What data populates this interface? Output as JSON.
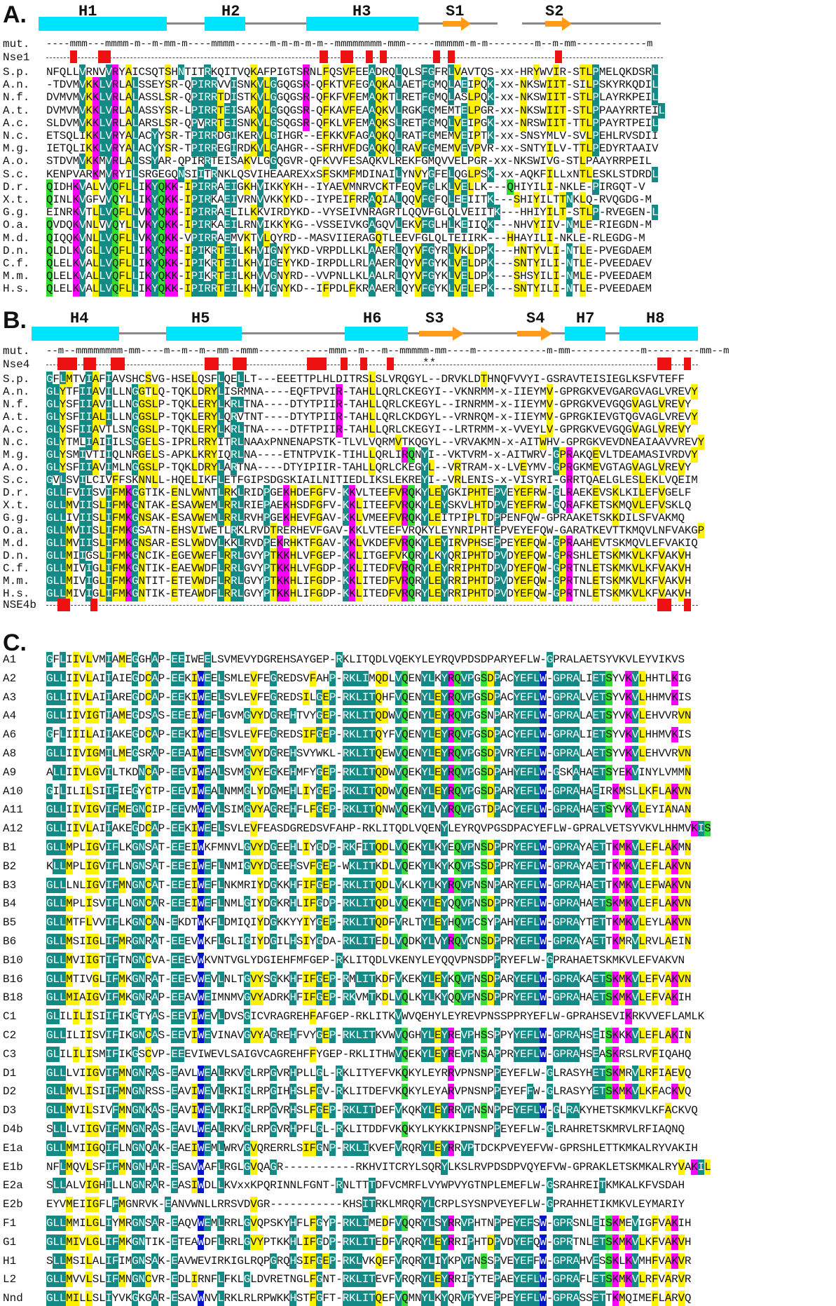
{
  "colors": {
    "conserved": "#138a85",
    "similar": "#fff200",
    "magenta": "#ff00ff",
    "blue": "#0015c8",
    "green": "#33dd33",
    "helix": "#00e5ff",
    "strand": "#ff9a1a",
    "mutation": "#ee1111"
  },
  "panelA": {
    "letter": "A.",
    "ss_labels": [
      "H1",
      "H2",
      "H3",
      "S1",
      "S2"
    ],
    "mut_label": "mut.",
    "mut_line": "----mmm---mmmm-m--m-mm-m----mmmm------m-m-m-m-m--mmmmmmmm-mmm-----mmmmm-m-m--------m--m-mm------------m",
    "nse_label": "Nse1",
    "rows": [
      {
        "label": "S.p.",
        "seq": "NFQLLVRNVVRYAICSQTSHNTITRKQITVQKAFPIGTSRNLFQSVFEEADRQLQLSFGFRLVAVTQS-xx-HRYWVIR-STLPMELQKDSRL"
      },
      {
        "label": "A.n.",
        "seq": "-TDVMVKKLVRLALSSEYSR-QPIRRVVISNKVLGGQGSR-QFKTVFEGAQKALAETFGMQLAEIPQK-xx-NKSWIIT-SILPSKYRKQDIL"
      },
      {
        "label": "N.f.",
        "seq": "DVMVMVKKLVRLALASSLSR-QPIRRTDISTKVLGGQGSR-QFKFVFEMAQKTLRETFGMQLASLPQK-xx-NKSWIIT-STLPLAYRKPEIL"
      },
      {
        "label": "A.t.",
        "seq": "DVMVMVKKLVRLALASSYSR-LPIRRTEISAKVLGGQGSR-QFKAVFEAAQKVLRGKFGMEMTELPGR-xx-NKSWIIT-STLPPAAYRRTEIL"
      },
      {
        "label": "A.c.",
        "seq": "SLDVMVKKLVRLALARSLSR-QPVRRTEISNKVLGSQGSR-QFKLVFEMAQKSLRETFGMQLVEIPGK-xx-NRSWIIT-TTLPPAYRTPEIL"
      },
      {
        "label": "N.c.",
        "seq": "ETSQLIKKLVRYALACYYSR-TPIRRDGIKERVLGIHGR--EFKKVFAGAQKQLRATFGMEMVEIPTK-xx-SNSYMLV-SVLPEHLRVSDII"
      },
      {
        "label": "M.g.",
        "seq": "IETQLIKKLVRYALACYYSR-TPIRREGIRDKVLGAHGR--SFRHVFDGAQKQLRAVFGMEMVEVPVR-xx-SNTYILV-TTLPEDYRTAAIV"
      },
      {
        "label": "A.o.",
        "seq": "STDVMVKKMVRLALSSYAR-QPIRRTEISAKVLGGQGVR-QFKVVFESAQKVLREKFGMQVVELPGR-xx-NKSWIVG-STLPAAYRRPEIL"
      },
      {
        "label": "S.c.",
        "seq": "KENPVARKMVRYILSRGEGQNSIITRNKLQSVIHEAAREXxSFSKMFMDINAILYNVYGFELQGLPSK-xx-AQKFILLxNTLESKLSTDRDL"
      },
      {
        "label": "D.r.",
        "seq": "QIDHKVALVVQFLLIKYQKK-IPIRRAEIGKHVIKKYKH--IYAEVMNRVCKTFEQVFGLKLVELLK---QHIYILI-NKLE-PIRGQT-V"
      },
      {
        "label": "X.t.",
        "seq": "QINLKVGFVVQYLLIKYQKK-IPIRKAEIVRNVVKKYKD--IYPEIFRRAQIALQQVFGFQLEEIITK---SHIYILTTNKLQ-RVQGDG-M"
      },
      {
        "label": "G.g.",
        "seq": "EINRKVTLLVQFLLVKYQKK-IPIRRAELILKKVIRDYKD--VYSEIVNRAGRTLQQVFGLQLVEIITK---HHIYILT-STLP-RVEGEN-L"
      },
      {
        "label": "O.a.",
        "seq": "QVDQKVNLVVQYLLVKYQKK-IPIRKAEILRNVIKKYKG--VSSEIVKGAGQVLEKVFGLHLKEIIQK---NHVYIIV-NMLE-RIEGDN-M"
      },
      {
        "label": "M.d.",
        "seq": "QIQQKVNLLVQFLLVKYQKK-VPIRRAEMVKTVLQYRD--MASVIIERAGQTLEEVFGLQLTEIIRK---HHAYILI-NKLE-RLEGDG-M"
      },
      {
        "label": "D.n.",
        "seq": "QLDLKVGLLVQFLLIKYQKK-IPIKRTEILKHVIGNYYKD-VRPDLLKLAAERLQYVFGYRLVKLDPK---HNTYVLI-NTLE-PVEGDAEM"
      },
      {
        "label": "C.f.",
        "seq": "QLELKVALLVQFLLIKYQKK-IPIKRTEILKHVIGEYYKD-IRPDLLRLAAERLQYVFGYKLVELDPK---SNTYILI-NTLE-PVEEDAEV"
      },
      {
        "label": "M.m.",
        "seq": "QLELKVALLVQFLLIKYQKK-IPIKRTEILKHVVGNYRD--VVPNLLKLAALRLQYVFGYKLVELDPK---SHSYILI-NMLE-PVEEDAEM"
      },
      {
        "label": "H.s.",
        "seq": "QLELKVALLVQFLLIKYQKK-IPIRRTEILKHVIGNYKD--IFPDLFKRAAERLQYVFGYKLVELEPK---SNTYILI-NTLE-PVEEDAEM"
      }
    ]
  },
  "panelB": {
    "letter": "B.",
    "ss_labels": [
      "H4",
      "H5",
      "H6",
      "S3",
      "S4",
      "H7",
      "H8"
    ],
    "mut_label": "mut.",
    "mut_line": "--m--mmmmmmmm-mm----m--m--m--mm--mmm------------mmm--m---m--mmmmm-mm----m------------m-mm------------m---------mm--m",
    "nse_label": "Nse4",
    "stars": "**",
    "nse4b_label": "NSE4b",
    "rows": [
      {
        "label": "S.p.",
        "seq": "GFLMTVIAFIAVSHCSVG-HSELQSFLQELLT---EEETTPLHLDITRSLSLVRQGYL--DRVKLDTHNQFVVYI-GSRAVTEISIEGLKSFVTEFF"
      },
      {
        "label": "A.n.",
        "seq": "GLYTFIIAVILLNGGTLQ-TQKLDRYLISRMNA----EQFTPVIR-TAHLLQRLCKEGYI--VKNRMM-x-IIEYMV-GPRGKVEVGARGVAGLVREVY"
      },
      {
        "label": "N.f.",
        "seq": "GLYSFIIAVILLNGGSLP-TQKLERYLKRLTNA----DTYTPIIR-TAHLLQRLCKEGYL--IRNRMM-x-IIEYMV-GPRGKVEVGQGVAGLVREVY"
      },
      {
        "label": "A.t.",
        "seq": "GLYSFIIALILLNGGSLP-TQKLERYLQRVTNT----DTYTPIIR-TAHLLQRLCKDGYL--VRNRQM-x-IIEYMV-GPRGKIEVGTQGVAGLVREVY"
      },
      {
        "label": "A.c.",
        "seq": "GLYSFIIAVTLSNGGSLP-TQKLERYLKRLTNA----DTFTPIIR-TAHLLQRLCKEGYI--LRTRMM-x-VVEYLV-GPRGKVEVGQGVAGLVREVY"
      },
      {
        "label": "N.c.",
        "seq": "GLYTMLIAIIILSGGELS-IPRLRRYITRLNAAxPNNENAPSTK-TLVLVQRMVTKQGYL--VRVAKMN-x-AITWHV-GPRGKVEVDNEAIAAVVREVY"
      },
      {
        "label": "M.g.",
        "seq": "GLYSMIVTIIQLNRGELS-APKLKRYIQRLNA----ETNTPVIK-TIHLLQRLIRQNYI--VKTVRM-x-AITWRV-GPRAKQEVLTDEAMASIVRDVY"
      },
      {
        "label": "A.o.",
        "seq": "GLYSFIIAVIMLNGGSLP-TQKLDRYLARTNA----DTYIPIIR-TAHLLQRLCKEGYL--VRTRAM-x-LVEYMV-GPRGKMEVGTAGVAGLVREVY"
      },
      {
        "label": "S.c.",
        "seq": "GVLSVILCIVFFSKNNLL-HQELIKFLETFGIPSDGSKIAILNITIEDLIKSLEKREYI--VRLENIS-x-VISYRI-GRRTQAELGLESLEKLVQEIM"
      },
      {
        "label": "D.r.",
        "seq": "GLLFVIISVIFMKGGTIK-ENLVWNTLRKLRIDPGEKHDEFGFV-KKVLTEEFVRQKYLEYGKIPHTEPVEYEFRW-GLRAEKEVSKLKILEFVGELF"
      },
      {
        "label": "X.t.",
        "seq": "GLLMVIISLIFMKGNTAK-ESAVWEMLRRLRIEPAEKHSDFGFV-KKLITEEFVRQKYLEYSKVLHTDPVEYEFRW-GQRAFKETSKMQVLEFVSKLQ"
      },
      {
        "label": "G.g.",
        "seq": "GLLIVIISLIFMKGNSAK-ESAVWEMLRRLRVHPGEKHEVFGAV-KKLVMEEFVRQKYLEITPIPLTDPPENFQW-GPRAAKETSKKDILSFVAKMQ"
      },
      {
        "label": "O.a.",
        "seq": "GLLMVIISLIFMKGSATN-EHSVIWETLRKLRVDTRERHEVFGAV-KKLVTEEFVRQKYLEYNRIPHTEPVEYEFQW-GARATKEVTTKMQVLNFVAKGP"
      },
      {
        "label": "M.d.",
        "seq": "GLLMVIISLIFMKGNSAR-ESLVWDVLKKLRVDPEKRHKTFGAV-KKLVKDEFVRQKYLEYIRVPHSEPPEYEFQW-GPRAAHEVTSKMQVLEFVAKIQ"
      },
      {
        "label": "D.n.",
        "seq": "GLLMIIGSLIFMKGNCIK-EGEVWEFLRRLGVYPTKKHLVFGEP-KKLITGEFVKQRYLKYQRIPHTDPVDYEFQW-GPRSHLETSKMKVLKFVAKVH"
      },
      {
        "label": "C.f.",
        "seq": "GLLMIVIGLIFMKGNTIK-EAEVWDFLRRLGVYPTKKHLVFGDP-KKLITEDFVRQRYLEYRRIPHTDPVDYEFQW-GPRTNLETSKMKVLKFVAKVH"
      },
      {
        "label": "M.m.",
        "seq": "GLLMIVIGLIFMKGNTIT-ETEVWDFLRRLGVYPTKKHLIFGDP-KKLITEDFVRQRYLEYRRIPHTDPVDYEFQW-GPRTNLETSKMKVLKFVAKVH"
      },
      {
        "label": "H.s.",
        "seq": "GLLMIVIGLIFMKGNTIK-ETEAWDFLRRLGVYPTKKHLIFGDP-KKLITEDFVRQRYLEYRRIPHTDPVDYEFQW-GPRTNLETSKMKVLKFVAKVH"
      }
    ]
  },
  "panelC": {
    "letter": "C.",
    "rows": [
      {
        "label": "A1",
        "seq": "GFLIIVLVMIAMEGGHAP-EEIWEELSVMEVYDGREHSAYGEP-RKLITQDLVQEKYLEYRQVPDSDPARYEFLW-GPRALAETSYVKVLEYVIKVS"
      },
      {
        "label": "A2",
        "seq": "GLLIIVLAIIAIEGDCAP-EEKIWEELSMLEVFEGREDSVFAHP-RKLIMQDLVQENYLKYRQVPGSDPACYEFLW-GPRALIETSYVKVLHHTLKIG"
      },
      {
        "label": "A3",
        "seq": "GLLIIVLAIIAREGDCAP-EEKIWEELSVLEVFEGREDSILGEP-RKLITQHFVQENYLEYRQVPGSDPACYEFLW-GPRALVETSYVKVLHHMVKIS"
      },
      {
        "label": "A4",
        "seq": "GLLIIVIGTIAMEGDSAS-EEEIWEFLGVMGVYDGREHTVYGEP-RKLITQDWVQENYLEYRQVPGSNPARYEFLW-GPRALAETSYVKVLEHVVRVN"
      },
      {
        "label": "A6",
        "seq": "GFLIIILAIIAKEGDCAP-EEKIWEELSVLEVFEGREDSIFGEP-RKLITQYFVQENYLEYRQVPGSDPACYEFLW-GPRALIETSYVKVLHHMVKIS"
      },
      {
        "label": "A8",
        "seq": "GLLIIVIGMILMEGSRAP-EEAIWEELSVMGVYDGREHSVYWKL-RKLITQEWVQENYLEYRQVPGSDPVRYEFLW-GPRALAETSYVKVLEHVVRVN"
      },
      {
        "label": "A9",
        "seq": "ALLIIVLGVILTKDNCAP-EEVIWEALSVMGVYEGKEHMFYGEP-RKLITQDWVQEKYLEYRQVPGSDPAHYEFLW-GSKAHAETSYEKVINYLVMMN"
      },
      {
        "label": "A10",
        "seq": "GILILILSIIFIEGYCTP-EEVIWEALNMMGLYDGMEHLIYGEP-RKLITQDWVQENYLEYRQVPGSDPARYEFLW-GPRAHAEIRKMSLLKFLAKVN"
      },
      {
        "label": "A11",
        "seq": "GLLIIVIGVIFMEGNCIP-EEVMWEVLSIMGVYAGREHFLFGEP-RKLITQNWVQEKYLVYRQVPGTDPACYEFLW-GPRAHAETSYVKVLEYIANAN"
      },
      {
        "label": "A12",
        "seq": "GLLIIVLAIIAKEGDCAP-EEKIWEELSVLEVFEASDGREDSVFAHP-RKLITQDLVQENYLEYRQVPGSDPACYEFLW-GPRALVETSYVKVLHHMVKIS"
      },
      {
        "label": "B1",
        "seq": "GLLMPLIGVIFLKGNSAT-EEEIWKFMNVLGVYDGEEHLIYGDP-RKFITQDLVQEKYLKYEQVPNSDPPRYEFLW-GPRAYAETTKMKVLEFLAKMN"
      },
      {
        "label": "B2",
        "seq": "KLLMPLIGVIFLNGNSAT-EEEIWEFLNMIGVYDGEEHSVFGEP-WKLITKDLVQEKYLKYKQVPSSDPPRYEFLW-GPRAYAETTKMKVLEFLAKVN"
      },
      {
        "label": "B3",
        "seq": "GLLLNLIGVIFMNGNCAT-EEEIWEFLNKMRIYDGKKHFIFGEP-RKLITQDLVKLKYLKYRQVPNSNPARYEFLW-GPRAHAETTKMKVLEFWAKVN"
      },
      {
        "label": "B4",
        "seq": "GLLMPLISVIFLNGNCAR-EEEIWEFLNMLGIYDGKRHLIFGDP-RKLITQDLVQEKYLEYQQVPNSDPPRYEFLW-GPRAHAETSKMKVLEFLAKVN"
      },
      {
        "label": "B5",
        "seq": "GLLMTFLVVIFLKGNCAN-EKDTWKFLDMIQIYDGKKYYIYGEP-RKLITQDFVRLTYLEYHQVPCSYPAHYEFLW-GPRAYTETTKMKVLEYLAKVN"
      },
      {
        "label": "B6",
        "seq": "GLLMSIIGLIFMRGNRAT-EEEVWKFLGLIGIYDGILHSIYGDA-RKLITEDLVQDKYLVYRQVCNSDPPRYEFLW-GPRAYAETTKMRVLRVLAEIN"
      },
      {
        "label": "B10",
        "seq": "GLLMVIIGTIFTNGNCVA-EEEVWKVNTVGLYDGIEHFMFGEP-RKLITQDLVKENYLEYQQVPNSDPPRYEFLW-GPRAHAETSKMKVLEFVAKVN"
      },
      {
        "label": "B16",
        "seq": "GLLMTIVGLIFMKGNRAT-EEEVWEVLNLTGVYSGKKHFIFGEP-RMLITKDFVKEKYLEYKQVPNSDPARYEFLW-GPRAKAETSKMKVLEFVAKVN"
      },
      {
        "label": "B18",
        "seq": "GLLMIAIGVIFMKGNRAP-EEAVWEIMNMVGVYADRKHFIFGEP-RKVMTKDLVQLKYLKYQQVPNSDPPRYEFLW-GPRAHAETSKMKVLEFVAKIH"
      },
      {
        "label": "C1",
        "seq": "GLILILISIIFIKGTYAS-EEVIWEVLDVSGICVRAGREHFAFGEP-RKLITKVWVQEHYLEYREVPNSSPPRYEFLW-GPRAHSEVIKRKVVEFLAMLK"
      },
      {
        "label": "C2",
        "seq": "GLLILIISVIFIKGNCAS-EEVIWEVINAVGVYAGREHFVYGEP-RKLITKVWVQGHYLEYREVPHSSPPYYEFLW-GPRAHSEISKKKVLEFLAKIN"
      },
      {
        "label": "C3",
        "seq": "GLILILISMIFIKGSCVP-EEEVIWEVLSAIGVCAGREHFFYGEP-RKLITHWVQEKYLEYREVPNSAPPRYEFLW-GPRAHSEASKRSLRVFIQAHQ"
      },
      {
        "label": "D1",
        "seq": "GLLLVIIGVIFMNGNRAS-EAVLWEALRKVGLRPGVRHPLLGL-RKLITYEFVKQKYLEYRRVPNSNPPEYEFLW-GLRASYHETSKMRVLRFIAEVQ"
      },
      {
        "label": "D2",
        "seq": "GLLMVLISIIFMNGNRSS-EAVIWEVLRKIGLRPGIHHSLFGV-RKLITDEFVKQKYLEYARVPNSNPPEYEFFW-GLRASYYETSKMKVLKFACKVQ"
      },
      {
        "label": "D3",
        "seq": "GLLMVILSIVFMNGNKAS-EAVIWEVLRKIGLRPGVRHSLFGEP-RKLITDEFVKQKYLEYRRVPNSNPPEYEFLW-GLRAKYHETSKMKVLKFACKVQ"
      },
      {
        "label": "D4b",
        "seq": "SLLLVIIGVIFMNGNRAS-EAVLWEALRKVGLRPGVRHPFLGL-RKLITDDFVKQKYLKYKKIPNSNPPEYEFLW-GLRAHRETSKMRVLRFIAQNQ"
      },
      {
        "label": "E1a",
        "seq": "GLLMMIIGQIFLNGNQAK-EAEIWEMLWRVGVQRERRLSIFGNP-RKLIKVEFVRQRYLEYRRVPTDCKPVEYEFVW-GPRSHLETTKMKALRYVAKIH"
      },
      {
        "label": "E1b",
        "seq": "NFLMQVLSFIFMNGNHAR-ESAVWAFLRGLGVQAGR-----------RKHVITCRYLSQRYLKSLRVPDSDPVQYEFVW-GPRAKLETSKMKALRYVAKIL"
      },
      {
        "label": "E2a",
        "seq": "SLLALVIGHILLNGNRAR-EASIWDLLKVxxKPQRINNLFGNT-RNLTTTDFVCMRFLVYWPVYGTNPLEMEFLW-GSRAHREITKMKALKFVSDAH"
      },
      {
        "label": "E2b",
        "seq": "EYVMEIIGFLFMGNRVK-EANVWNLLRRSVDVGR-----------KHSITRKLMRQRYLCRPLSYSNPVEYEFLW-GPRAHHETIKMKVLEYMARIY"
      },
      {
        "label": "F1",
        "seq": "GLLMMILGLIYMRGNSAR-EAQVWEMLRRLGVQPSKYHFLFGYP-RKLIMEDFVQQRYLSYRRVPHTNPPEYEFSW-GPRSNLEISKMEVIGFVAKIH"
      },
      {
        "label": "G1",
        "seq": "GLLMIVLGLIFMKGNTIK-ETEAWDFLRRLGVYPTKKHLIFGDP-RKLITEDFVRQRYLEYRRIPHTDPVDYEFQW-GPRTNLETSKMKVLKFVAKVH"
      },
      {
        "label": "H1",
        "seq": "SLLMSILALIFIMGNSAK-EAVWEVIRKIGLRQPGRQHSIFGEP-RKLVKQEFVRQRYLIYKPVPNSSPVEYEFFW-GPRAHVESSKLKVMHFVAKVR"
      },
      {
        "label": "L2",
        "seq": "GLLMVVLSLIFMNGNCVR-EDLIRNFLFKLGLDVRETNGLFGNT-RKLITEVFVRQRYLEYRRIPYTEPAEYEFLW-GPRAFLETSKMKVLRFVARVR"
      },
      {
        "label": "Nnd",
        "seq": "GLLMILLSLIYVKGKGAR-ESAVWNVLRKLRLRPWKKHSTFGFT-RKLITQEFVQMNYLKYQRVPYVEPPEYEFLW-GPRASSETTKMQIMEFLARVQ"
      }
    ]
  }
}
